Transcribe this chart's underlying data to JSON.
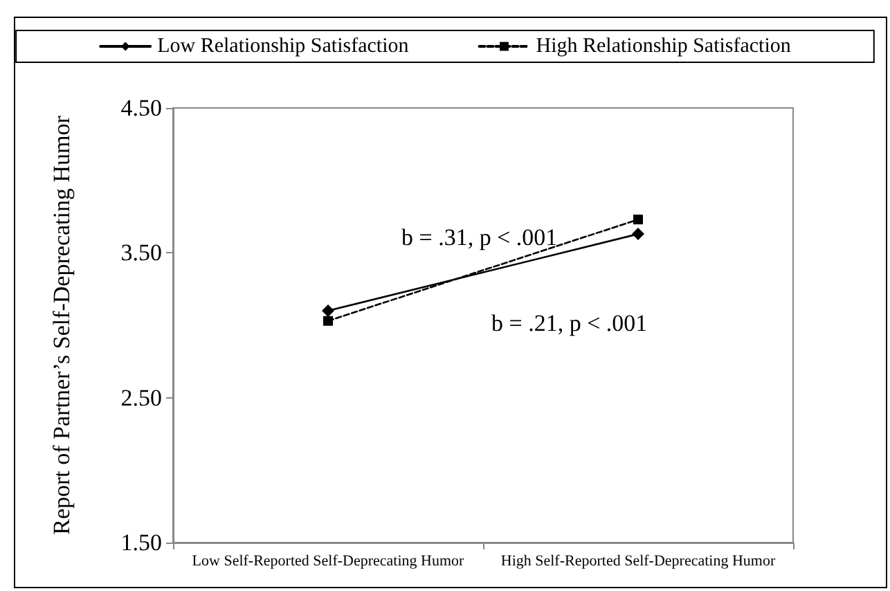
{
  "chart_data": {
    "type": "line",
    "ylabel": "Report of Partner’s Self-Deprecating Humor",
    "categories": [
      "Low Self-Reported Self-Deprecating Humor",
      "High Self-Reported Self-Deprecating Humor"
    ],
    "series": [
      {
        "name": "Low Relationship Satisfaction",
        "color": "#000000",
        "values": [
          3.1,
          3.63
        ],
        "marker": "diamond",
        "line_style": "solid"
      },
      {
        "name": "High Relationship Satisfaction",
        "color": "#000000",
        "values": [
          3.03,
          3.73
        ],
        "marker": "square",
        "line_style": "dashed"
      }
    ],
    "annotations": [
      "b = .31, p < .001",
      "b = .21, p < .001"
    ],
    "ylim": [
      1.5,
      4.5
    ],
    "yticks": [
      {
        "value": 1.5,
        "label": "1.50"
      },
      {
        "value": 2.5,
        "label": "2.50"
      },
      {
        "value": 3.5,
        "label": "3.50"
      },
      {
        "value": 4.5,
        "label": "4.50"
      }
    ],
    "grid": false,
    "legend": "top"
  }
}
